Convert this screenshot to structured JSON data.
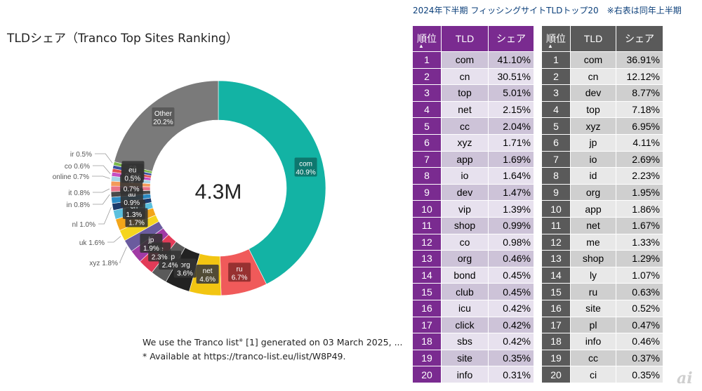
{
  "chart_data": {
    "type": "pie",
    "title": "TLDシェア（Tranco Top Sites Ranking）",
    "center_label": "4.3M",
    "slices": [
      {
        "name": "com",
        "value": 40.9,
        "label": "40.9%",
        "color": "#13b3a4"
      },
      {
        "name": "ru",
        "value": 6.7,
        "label": "6.7%",
        "color": "#f05a5a"
      },
      {
        "name": "net",
        "value": 4.6,
        "label": "4.6%",
        "color": "#f2c512"
      },
      {
        "name": "org",
        "value": 3.6,
        "label": "3.6%",
        "color": "#222222"
      },
      {
        "name": "top",
        "value": 2.4,
        "label": "2.4%",
        "color": "#5a5a5a"
      },
      {
        "name": "de",
        "value": 2.3,
        "label": "2.3%",
        "color": "#e23b58"
      },
      {
        "name": "jp",
        "value": 1.9,
        "label": "1.9%",
        "color": "#a13aa5"
      },
      {
        "name": "xyz",
        "value": 1.8,
        "label": "1.8%",
        "color": "#6a5b9e"
      },
      {
        "name": "uk",
        "value": 1.6,
        "label": "1.6%",
        "color": "#f5d51e"
      },
      {
        "name": "br",
        "value": 1.7,
        "label": "1.7%",
        "color": "#f2a51a"
      },
      {
        "name": "cn",
        "value": 1.3,
        "label": "1.3%",
        "color": "#5bc0de"
      },
      {
        "name": "nl",
        "value": 1.0,
        "label": "1.0%",
        "color": "#1c3a6b"
      },
      {
        "name": "au",
        "value": 0.9,
        "label": "0.9%",
        "color": "#2b8ac4"
      },
      {
        "name": "in",
        "value": 0.8,
        "label": "0.8%",
        "color": "#4a4a4a"
      },
      {
        "name": "it",
        "value": 0.8,
        "label": "0.8%",
        "color": "#e8748a"
      },
      {
        "name": "io",
        "value": 0.7,
        "label": "0.7%",
        "color": "#f39a5a"
      },
      {
        "name": "online",
        "value": 0.7,
        "label": "0.7%",
        "color": "#a7d4e6"
      },
      {
        "name": "co",
        "value": 0.6,
        "label": "0.6%",
        "color": "#c64fc2"
      },
      {
        "name": "eu",
        "value": 0.5,
        "label": "0.5%",
        "color": "#e05050"
      },
      {
        "name": "ca",
        "value": 0.5,
        "label": "0.5%",
        "color": "#3b4fa0"
      },
      {
        "name": "ir",
        "value": 0.5,
        "label": "0.5%",
        "color": "#7ab84a"
      },
      {
        "name": "Other",
        "value": 20.2,
        "label": "20.2%",
        "color": "#7a7a7a"
      }
    ],
    "inside_labels": [
      {
        "name": "com",
        "text": "40.9%"
      },
      {
        "name": "ru",
        "text": "6.7%"
      },
      {
        "name": "net",
        "text": "4.6%"
      },
      {
        "name": "org",
        "text": "3.6%"
      },
      {
        "name": "top",
        "text": "2.4%"
      },
      {
        "name": "de",
        "text": "2.3%"
      },
      {
        "name": "jp",
        "text": "1.9%"
      },
      {
        "name": "br",
        "text": "1.7%"
      },
      {
        "name": "cn",
        "text": "1.3%"
      },
      {
        "name": "au",
        "text": "0.9%"
      },
      {
        "name": "io",
        "text": "0.7%"
      },
      {
        "name": "ca",
        "text": "0.5%"
      },
      {
        "name": "eu",
        "text": "0.5%"
      },
      {
        "name": "Other",
        "text": "20.2%"
      }
    ],
    "outside_labels": [
      "ir 0.5%",
      "co 0.6%",
      "online 0.7%",
      "it 0.8%",
      "in 0.8%",
      "nl 1.0%",
      "uk 1.6%",
      "xyz 1.8%"
    ]
  },
  "footnote": {
    "line1": "We use the Tranco list",
    "line1_mark": "※",
    "line1_rest": " [1] generated on 03 March 2025, ...",
    "line2": "* Available at https://tranco-list.eu/list/W8P49."
  },
  "tables_title": "2024年下半期 フィッシングサイトTLDトップ20　※右表は同年上半期",
  "table_headers": {
    "rank": "順位",
    "tld": "TLD",
    "share": "シェア"
  },
  "table_left": {
    "rows": [
      {
        "rank": "1",
        "tld": "com",
        "share": "41.10%"
      },
      {
        "rank": "2",
        "tld": "cn",
        "share": "30.51%"
      },
      {
        "rank": "3",
        "tld": "top",
        "share": "5.01%"
      },
      {
        "rank": "4",
        "tld": "net",
        "share": "2.15%"
      },
      {
        "rank": "5",
        "tld": "cc",
        "share": "2.04%"
      },
      {
        "rank": "6",
        "tld": "xyz",
        "share": "1.71%"
      },
      {
        "rank": "7",
        "tld": "app",
        "share": "1.69%"
      },
      {
        "rank": "8",
        "tld": "io",
        "share": "1.64%"
      },
      {
        "rank": "9",
        "tld": "dev",
        "share": "1.47%"
      },
      {
        "rank": "10",
        "tld": "vip",
        "share": "1.39%"
      },
      {
        "rank": "11",
        "tld": "shop",
        "share": "0.99%"
      },
      {
        "rank": "12",
        "tld": "co",
        "share": "0.98%"
      },
      {
        "rank": "13",
        "tld": "org",
        "share": "0.46%"
      },
      {
        "rank": "14",
        "tld": "bond",
        "share": "0.45%"
      },
      {
        "rank": "15",
        "tld": "club",
        "share": "0.45%"
      },
      {
        "rank": "16",
        "tld": "icu",
        "share": "0.42%"
      },
      {
        "rank": "17",
        "tld": "click",
        "share": "0.42%"
      },
      {
        "rank": "18",
        "tld": "sbs",
        "share": "0.42%"
      },
      {
        "rank": "19",
        "tld": "site",
        "share": "0.35%"
      },
      {
        "rank": "20",
        "tld": "info",
        "share": "0.31%"
      }
    ]
  },
  "table_right": {
    "rows": [
      {
        "rank": "1",
        "tld": "com",
        "share": "36.91%"
      },
      {
        "rank": "2",
        "tld": "cn",
        "share": "12.12%"
      },
      {
        "rank": "3",
        "tld": "dev",
        "share": "8.77%"
      },
      {
        "rank": "4",
        "tld": "top",
        "share": "7.18%"
      },
      {
        "rank": "5",
        "tld": "xyz",
        "share": "6.95%"
      },
      {
        "rank": "6",
        "tld": "jp",
        "share": "4.11%"
      },
      {
        "rank": "7",
        "tld": "io",
        "share": "2.69%"
      },
      {
        "rank": "8",
        "tld": "id",
        "share": "2.23%"
      },
      {
        "rank": "9",
        "tld": "org",
        "share": "1.95%"
      },
      {
        "rank": "10",
        "tld": "app",
        "share": "1.86%"
      },
      {
        "rank": "11",
        "tld": "net",
        "share": "1.67%"
      },
      {
        "rank": "12",
        "tld": "me",
        "share": "1.33%"
      },
      {
        "rank": "13",
        "tld": "shop",
        "share": "1.29%"
      },
      {
        "rank": "14",
        "tld": "ly",
        "share": "1.07%"
      },
      {
        "rank": "15",
        "tld": "ru",
        "share": "0.63%"
      },
      {
        "rank": "16",
        "tld": "site",
        "share": "0.52%"
      },
      {
        "rank": "17",
        "tld": "pl",
        "share": "0.47%"
      },
      {
        "rank": "18",
        "tld": "info",
        "share": "0.46%"
      },
      {
        "rank": "19",
        "tld": "cc",
        "share": "0.37%"
      },
      {
        "rank": "20",
        "tld": "ci",
        "share": "0.35%"
      }
    ]
  },
  "watermark": "ai",
  "colors": {
    "purple": "#7a2b90",
    "gray": "#5a5a5a",
    "title_blue": "#0b3f7a"
  }
}
